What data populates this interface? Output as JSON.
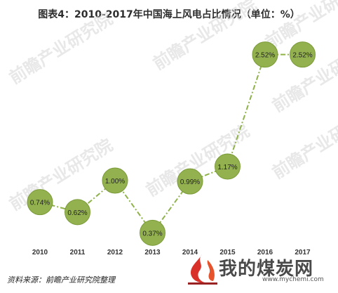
{
  "title": "图表4：2010-2017年中国海上风电占比情况（单位：%）",
  "source": "资料来源：前瞻产业研究院整理",
  "watermark": "前瞻产业研究院",
  "logo": {
    "brand": "我的煤炭网",
    "url": "www.mychemi.com"
  },
  "colors": {
    "marker_fill": "#93b24f",
    "marker_stroke": "#7a9a38",
    "line": "#8fb24a"
  },
  "chart_data": {
    "type": "line",
    "categories": [
      "2010",
      "2011",
      "2012",
      "2013",
      "2014",
      "2015",
      "2016",
      "2017"
    ],
    "values": [
      0.74,
      0.62,
      1.0,
      0.37,
      0.99,
      1.17,
      2.52,
      2.52
    ],
    "data_labels": [
      "0.74%",
      "0.62%",
      "1.00%",
      "0.37%",
      "0.99%",
      "1.17%",
      "2.52%",
      "2.52%"
    ],
    "line_style": "dash-dot",
    "marker": "circle",
    "ylim": [
      0,
      2.8
    ],
    "yaxis_visible": false,
    "grid": false,
    "legend": "none"
  }
}
